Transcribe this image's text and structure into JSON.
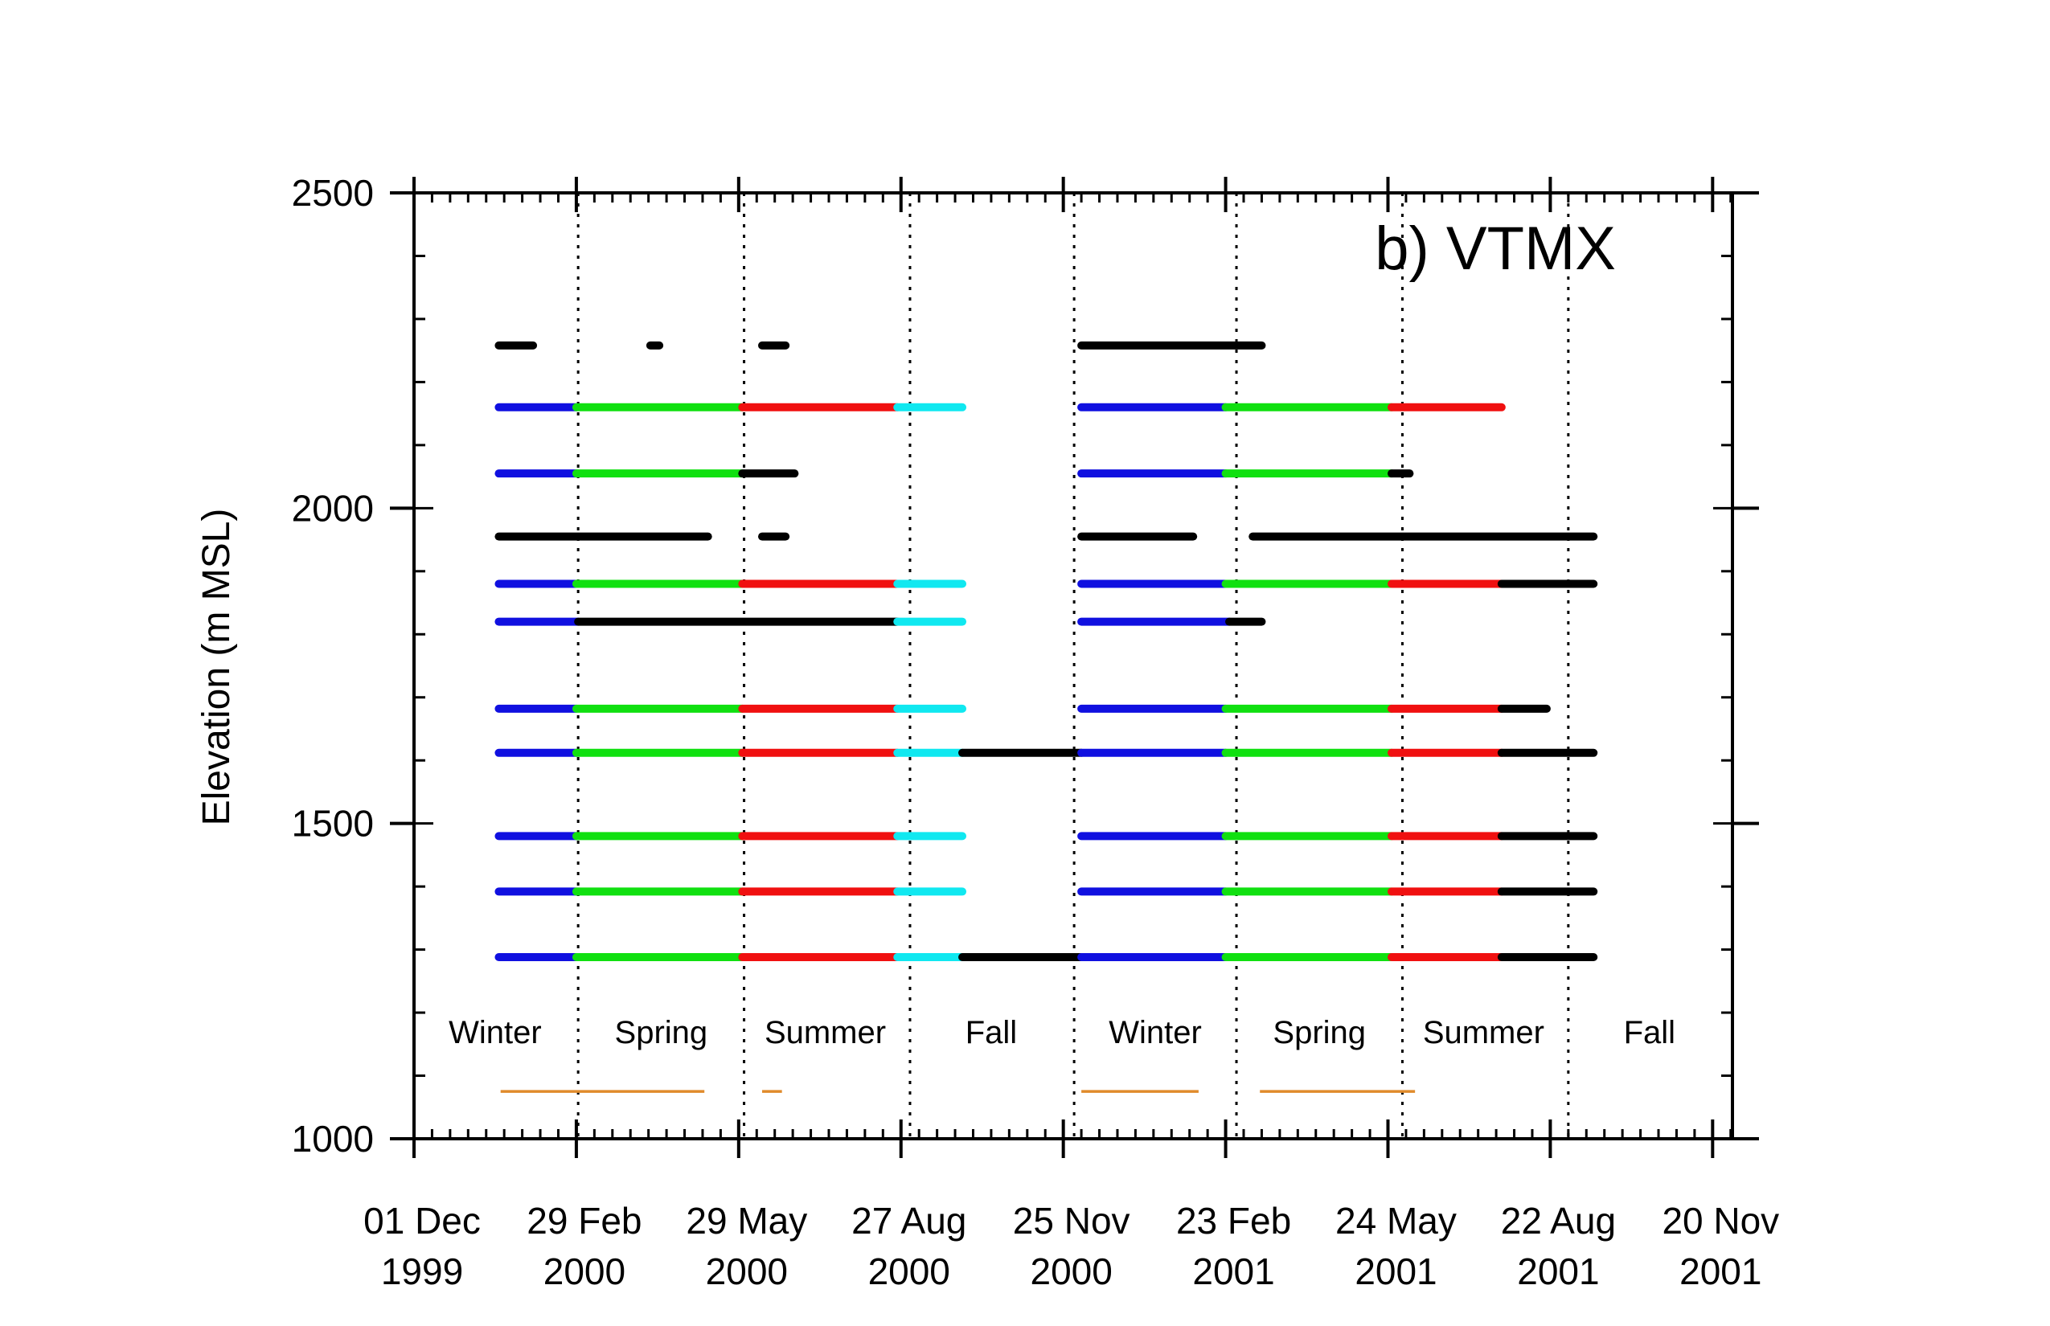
{
  "chart_data": {
    "type": "line",
    "title": "b) VTMX",
    "xlabel": "",
    "ylabel": "Elevation (m MSL)",
    "xlim": [
      "1999-12-01",
      "2001-12-01"
    ],
    "ylim": [
      1000,
      2500
    ],
    "y_ticks": [
      {
        "value": 1000,
        "label": "1000"
      },
      {
        "value": 1500,
        "label": "1500"
      },
      {
        "value": 2000,
        "label": "2000"
      },
      {
        "value": 2500,
        "label": "2500"
      }
    ],
    "x_ticks": [
      {
        "date": "1999-12-01",
        "line1": "01 Dec",
        "line2": "1999"
      },
      {
        "date": "2000-02-29",
        "line1": "29 Feb",
        "line2": "2000"
      },
      {
        "date": "2000-05-29",
        "line1": "29 May",
        "line2": "2000"
      },
      {
        "date": "2000-08-27",
        "line1": "27 Aug",
        "line2": "2000"
      },
      {
        "date": "2000-11-25",
        "line1": "25 Nov",
        "line2": "2000"
      },
      {
        "date": "2001-02-23",
        "line1": "23 Feb",
        "line2": "2001"
      },
      {
        "date": "2001-05-24",
        "line1": "24 May",
        "line2": "2001"
      },
      {
        "date": "2001-08-22",
        "line1": "22 Aug",
        "line2": "2001"
      },
      {
        "date": "2001-11-20",
        "line1": "20 Nov",
        "line2": "2001"
      }
    ],
    "season_dividers": [
      "2000-03-01",
      "2000-06-01",
      "2000-09-01",
      "2000-12-01",
      "2001-03-01",
      "2001-06-01",
      "2001-09-01"
    ],
    "season_labels": [
      {
        "label": "Winter",
        "center": "2000-01-15"
      },
      {
        "label": "Spring",
        "center": "2000-04-16"
      },
      {
        "label": "Summer",
        "center": "2000-07-16"
      },
      {
        "label": "Fall",
        "center": "2000-10-16"
      },
      {
        "label": "Winter",
        "center": "2001-01-15"
      },
      {
        "label": "Spring",
        "center": "2001-04-16"
      },
      {
        "label": "Summer",
        "center": "2001-07-16"
      },
      {
        "label": "Fall",
        "center": "2001-10-16"
      }
    ],
    "colors": {
      "winter": "#1010e0",
      "spring": "#10e010",
      "summer": "#f01010",
      "fall": "#10e8f0",
      "other": "#000000",
      "campaign": "#e08b2c"
    },
    "campaign_periods": [
      [
        "2000-01-18",
        "2000-05-10"
      ],
      [
        "2000-06-11",
        "2000-06-22"
      ],
      [
        "2000-12-05",
        "2001-02-08"
      ],
      [
        "2001-03-14",
        "2001-06-08"
      ]
    ],
    "series": [
      {
        "elevation": 2258,
        "segments": [
          {
            "start": "2000-01-17",
            "end": "2000-02-05",
            "color": "other"
          },
          {
            "start": "2000-04-10",
            "end": "2000-04-15",
            "color": "other"
          },
          {
            "start": "2000-06-11",
            "end": "2000-06-24",
            "color": "other"
          },
          {
            "start": "2000-12-05",
            "end": "2001-03-15",
            "color": "other"
          }
        ]
      },
      {
        "elevation": 2160,
        "segments": [
          {
            "start": "2000-01-17",
            "end": "2000-02-29",
            "color": "winter"
          },
          {
            "start": "2000-02-29",
            "end": "2000-05-31",
            "color": "spring"
          },
          {
            "start": "2000-05-31",
            "end": "2000-08-25",
            "color": "summer"
          },
          {
            "start": "2000-08-25",
            "end": "2000-09-30",
            "color": "fall"
          },
          {
            "start": "2000-12-05",
            "end": "2001-02-23",
            "color": "winter"
          },
          {
            "start": "2001-02-23",
            "end": "2001-05-26",
            "color": "spring"
          },
          {
            "start": "2001-05-26",
            "end": "2001-07-26",
            "color": "summer"
          }
        ]
      },
      {
        "elevation": 2055,
        "segments": [
          {
            "start": "2000-01-17",
            "end": "2000-02-29",
            "color": "winter"
          },
          {
            "start": "2000-02-29",
            "end": "2000-05-31",
            "color": "spring"
          },
          {
            "start": "2000-05-31",
            "end": "2000-06-29",
            "color": "other"
          },
          {
            "start": "2000-12-05",
            "end": "2001-02-23",
            "color": "winter"
          },
          {
            "start": "2001-02-23",
            "end": "2001-05-26",
            "color": "spring"
          },
          {
            "start": "2001-05-26",
            "end": "2001-06-05",
            "color": "other"
          }
        ]
      },
      {
        "elevation": 1955,
        "segments": [
          {
            "start": "2000-01-17",
            "end": "2000-05-12",
            "color": "other"
          },
          {
            "start": "2000-06-11",
            "end": "2000-06-24",
            "color": "other"
          },
          {
            "start": "2000-12-05",
            "end": "2001-02-05",
            "color": "other"
          },
          {
            "start": "2001-03-10",
            "end": "2001-09-15",
            "color": "other"
          }
        ]
      },
      {
        "elevation": 1880,
        "segments": [
          {
            "start": "2000-01-17",
            "end": "2000-02-29",
            "color": "winter"
          },
          {
            "start": "2000-02-29",
            "end": "2000-05-31",
            "color": "spring"
          },
          {
            "start": "2000-05-31",
            "end": "2000-08-25",
            "color": "summer"
          },
          {
            "start": "2000-08-25",
            "end": "2000-09-30",
            "color": "fall"
          },
          {
            "start": "2000-12-05",
            "end": "2001-02-23",
            "color": "winter"
          },
          {
            "start": "2001-02-23",
            "end": "2001-05-26",
            "color": "spring"
          },
          {
            "start": "2001-05-26",
            "end": "2001-07-26",
            "color": "summer"
          },
          {
            "start": "2001-07-26",
            "end": "2001-09-15",
            "color": "other"
          }
        ]
      },
      {
        "elevation": 1820,
        "segments": [
          {
            "start": "2000-01-17",
            "end": "2000-03-01",
            "color": "winter"
          },
          {
            "start": "2000-03-01",
            "end": "2000-08-25",
            "color": "other"
          },
          {
            "start": "2000-08-25",
            "end": "2000-09-30",
            "color": "fall"
          },
          {
            "start": "2000-12-05",
            "end": "2001-02-25",
            "color": "winter"
          },
          {
            "start": "2001-02-25",
            "end": "2001-03-15",
            "color": "other"
          }
        ]
      },
      {
        "elevation": 1682,
        "segments": [
          {
            "start": "2000-01-17",
            "end": "2000-02-29",
            "color": "winter"
          },
          {
            "start": "2000-02-29",
            "end": "2000-05-31",
            "color": "spring"
          },
          {
            "start": "2000-05-31",
            "end": "2000-08-25",
            "color": "summer"
          },
          {
            "start": "2000-08-25",
            "end": "2000-09-30",
            "color": "fall"
          },
          {
            "start": "2000-12-05",
            "end": "2001-02-23",
            "color": "winter"
          },
          {
            "start": "2001-02-23",
            "end": "2001-05-26",
            "color": "spring"
          },
          {
            "start": "2001-05-26",
            "end": "2001-07-26",
            "color": "summer"
          },
          {
            "start": "2001-07-26",
            "end": "2001-08-20",
            "color": "other"
          }
        ]
      },
      {
        "elevation": 1612,
        "segments": [
          {
            "start": "2000-01-17",
            "end": "2000-02-29",
            "color": "winter"
          },
          {
            "start": "2000-02-29",
            "end": "2000-05-31",
            "color": "spring"
          },
          {
            "start": "2000-05-31",
            "end": "2000-08-25",
            "color": "summer"
          },
          {
            "start": "2000-08-25",
            "end": "2000-09-30",
            "color": "fall"
          },
          {
            "start": "2000-09-30",
            "end": "2000-12-05",
            "color": "other"
          },
          {
            "start": "2000-12-05",
            "end": "2001-02-23",
            "color": "winter"
          },
          {
            "start": "2001-02-23",
            "end": "2001-05-26",
            "color": "spring"
          },
          {
            "start": "2001-05-26",
            "end": "2001-07-26",
            "color": "summer"
          },
          {
            "start": "2001-07-26",
            "end": "2001-09-15",
            "color": "other"
          }
        ]
      },
      {
        "elevation": 1480,
        "segments": [
          {
            "start": "2000-01-17",
            "end": "2000-02-29",
            "color": "winter"
          },
          {
            "start": "2000-02-29",
            "end": "2000-05-31",
            "color": "spring"
          },
          {
            "start": "2000-05-31",
            "end": "2000-08-25",
            "color": "summer"
          },
          {
            "start": "2000-08-25",
            "end": "2000-09-30",
            "color": "fall"
          },
          {
            "start": "2000-12-05",
            "end": "2001-02-23",
            "color": "winter"
          },
          {
            "start": "2001-02-23",
            "end": "2001-05-26",
            "color": "spring"
          },
          {
            "start": "2001-05-26",
            "end": "2001-07-26",
            "color": "summer"
          },
          {
            "start": "2001-07-26",
            "end": "2001-09-15",
            "color": "other"
          }
        ]
      },
      {
        "elevation": 1392,
        "segments": [
          {
            "start": "2000-01-17",
            "end": "2000-02-29",
            "color": "winter"
          },
          {
            "start": "2000-02-29",
            "end": "2000-05-31",
            "color": "spring"
          },
          {
            "start": "2000-05-31",
            "end": "2000-08-25",
            "color": "summer"
          },
          {
            "start": "2000-08-25",
            "end": "2000-09-30",
            "color": "fall"
          },
          {
            "start": "2000-12-05",
            "end": "2001-02-23",
            "color": "winter"
          },
          {
            "start": "2001-02-23",
            "end": "2001-05-26",
            "color": "spring"
          },
          {
            "start": "2001-05-26",
            "end": "2001-07-26",
            "color": "summer"
          },
          {
            "start": "2001-07-26",
            "end": "2001-09-15",
            "color": "other"
          }
        ]
      },
      {
        "elevation": 1288,
        "segments": [
          {
            "start": "2000-01-17",
            "end": "2000-02-29",
            "color": "winter"
          },
          {
            "start": "2000-02-29",
            "end": "2000-05-31",
            "color": "spring"
          },
          {
            "start": "2000-05-31",
            "end": "2000-08-25",
            "color": "summer"
          },
          {
            "start": "2000-08-25",
            "end": "2000-09-30",
            "color": "fall"
          },
          {
            "start": "2000-09-30",
            "end": "2000-12-05",
            "color": "other"
          },
          {
            "start": "2000-12-05",
            "end": "2001-02-23",
            "color": "winter"
          },
          {
            "start": "2001-02-23",
            "end": "2001-05-26",
            "color": "spring"
          },
          {
            "start": "2001-05-26",
            "end": "2001-07-26",
            "color": "summer"
          },
          {
            "start": "2001-07-26",
            "end": "2001-09-15",
            "color": "other"
          }
        ]
      }
    ]
  }
}
